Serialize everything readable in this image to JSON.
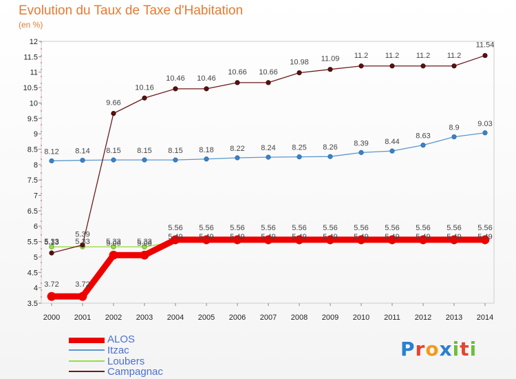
{
  "chart_data": {
    "type": "line",
    "title": "Evolution du Taux de Taxe d'Habitation",
    "subtitle": "(en %)",
    "x": [
      "2000",
      "2001",
      "2002",
      "2003",
      "2004",
      "2005",
      "2006",
      "2007",
      "2008",
      "2009",
      "2010",
      "2011",
      "2012",
      "2013",
      "2014"
    ],
    "ylim": [
      3.5,
      12
    ],
    "yticks": [
      "3.5",
      "4",
      "4.5",
      "5",
      "5.5",
      "6",
      "6.5",
      "7",
      "7.5",
      "8",
      "8.5",
      "9",
      "9.5",
      "10",
      "10.5",
      "11",
      "11.5",
      "12"
    ],
    "grid": false,
    "legend_position": "bottom-left",
    "series": [
      {
        "name": "ALOS",
        "color": "#ee0000",
        "values": [
          3.72,
          3.72,
          5.06,
          5.06,
          5.56,
          5.56,
          5.56,
          5.56,
          5.56,
          5.56,
          5.56,
          5.56,
          5.56,
          5.56,
          5.56
        ],
        "labels": [
          "3.72",
          "3.72",
          "5.06",
          "5.06",
          "5.56",
          "5.56",
          "5.56",
          "5.56",
          "5.56",
          "5.56",
          "5.56",
          "5.56",
          "5.56",
          "5.56",
          "5.56"
        ]
      },
      {
        "name": "Itzac",
        "color": "#5a97cc",
        "values": [
          8.12,
          8.14,
          8.15,
          8.15,
          8.15,
          8.18,
          8.22,
          8.24,
          8.25,
          8.26,
          8.39,
          8.44,
          8.63,
          8.9,
          9.03
        ],
        "labels": [
          "8.12",
          "8.14",
          "8.15",
          "8.15",
          "8.15",
          "8.18",
          "8.22",
          "8.24",
          "8.25",
          "8.26",
          "8.39",
          "8.44",
          "8.63",
          "8.9",
          "9.03"
        ]
      },
      {
        "name": "Loubers",
        "color": "#99dd44",
        "values": [
          5.33,
          5.33,
          5.33,
          5.33,
          5.49,
          5.49,
          5.49,
          5.49,
          5.49,
          5.49,
          5.49,
          5.49,
          5.49,
          5.49,
          5.49
        ],
        "labels": [
          "5.33",
          "5.33",
          "5.33",
          "5.33",
          "5.49",
          "5.49",
          "5.49",
          "5.49",
          "5.49",
          "5.49",
          "5.49",
          "5.49",
          "5.49",
          "5.49",
          "5.49"
        ]
      },
      {
        "name": "Campagnac",
        "color": "#6b1a1a",
        "values": [
          5.13,
          5.39,
          9.66,
          10.16,
          10.46,
          10.46,
          10.66,
          10.66,
          10.98,
          11.09,
          11.2,
          11.2,
          11.2,
          11.2,
          11.54
        ],
        "labels": [
          "5.13",
          "5.39",
          "9.66",
          "10.16",
          "10.46",
          "10.46",
          "10.66",
          "10.66",
          "10.98",
          "11.09",
          "11.2",
          "11.2",
          "11.2",
          "11.2",
          "11.54"
        ]
      }
    ]
  },
  "legend": {
    "items": [
      "ALOS",
      "Itzac",
      "Loubers",
      "Campagnac"
    ]
  },
  "logo": {
    "text": "Proxiti",
    "letters": [
      "P",
      "r",
      "o",
      "x",
      "i",
      "t",
      "i"
    ],
    "colors": [
      "#2a7fd0",
      "#e8432f",
      "#f29a1f",
      "#2a7fd0",
      "#6cbf3a",
      "#e8432f",
      "#6cbf3a"
    ]
  }
}
